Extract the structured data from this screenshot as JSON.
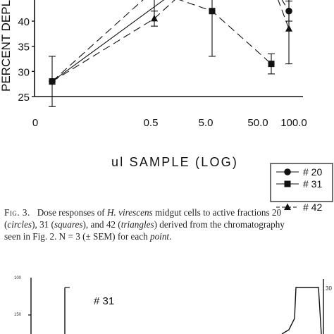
{
  "chart_data": {
    "type": "line",
    "ylabel": "PERCENT DEPL",
    "xlabel": "ul SAMPLE (LOG)",
    "y_ticks": [
      "40",
      "35",
      "30",
      "25"
    ],
    "x_ticks": [
      "0",
      "0.5",
      "5.0",
      "50.0",
      "100.0"
    ],
    "ylim": [
      25,
      47
    ],
    "legend_position": "bottom-right",
    "series": [
      {
        "name": "# 20",
        "marker": "circle",
        "points": [
          {
            "x": "0",
            "y": 28
          },
          {
            "x": "100.0",
            "y": 42,
            "err": 2
          }
        ]
      },
      {
        "name": "# 31",
        "marker": "square",
        "points": [
          {
            "x": "0",
            "y": 28,
            "err": 5
          },
          {
            "x": "5.0",
            "y": 42,
            "err": 9
          },
          {
            "x": "50.0",
            "y": 31.5,
            "err": 2
          }
        ]
      },
      {
        "name": "# 42",
        "marker": "triangle",
        "points": [
          {
            "x": "0",
            "y": 28
          },
          {
            "x": "0.5",
            "y": 40.5,
            "err": 1.5
          },
          {
            "x": "100.0",
            "y": 38.5,
            "err": 7
          }
        ]
      }
    ]
  },
  "caption": {
    "fig_label": "Fig. 3.",
    "line1_a": "Dose responses of ",
    "line1_species": "H. virescens",
    "line1_b": " midgut cells to active fractions 20",
    "line2_a": "(",
    "line2_circles": "circles",
    "line2_b": "), 31 (",
    "line2_squares": "squares",
    "line2_c": "), and 42 (",
    "line2_triangles": "triangles",
    "line2_d": ") derived from the chromatography",
    "line3_a": "seen in Fig. 2. N = 3 (± SEM) for each ",
    "line3_point": "point",
    "line3_b": "."
  },
  "lower_figure": {
    "label": "# 31",
    "left_ticks": [
      "100",
      "150"
    ],
    "right_tick": "30"
  }
}
